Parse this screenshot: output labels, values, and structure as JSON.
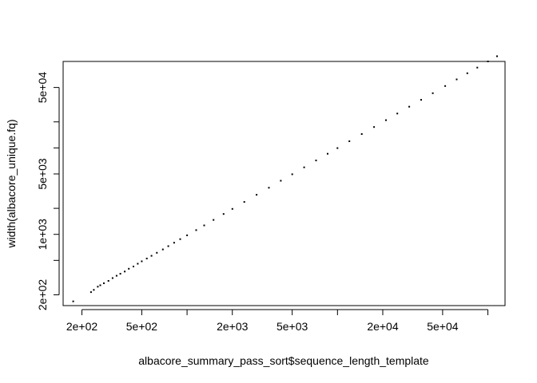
{
  "chart_data": {
    "type": "scatter",
    "title": "",
    "xlabel": "albacore_summary_pass_sort$sequence_length_template",
    "ylabel": "width(albacore_unique.fq)",
    "xscale": "log",
    "yscale": "log",
    "xlim": [
      150,
      130000
    ],
    "ylim": [
      150,
      100000
    ],
    "grid": false,
    "legend": "none",
    "point_color": "#000000",
    "x_ticks": [
      {
        "value": 200,
        "label": "2e+02"
      },
      {
        "value": 500,
        "label": "5e+02"
      },
      {
        "value": 1000,
        "label": ""
      },
      {
        "value": 2000,
        "label": "2e+03"
      },
      {
        "value": 5000,
        "label": "5e+03"
      },
      {
        "value": 10000,
        "label": ""
      },
      {
        "value": 20000,
        "label": "2e+04"
      },
      {
        "value": 50000,
        "label": "5e+04"
      },
      {
        "value": 100000,
        "label": ""
      }
    ],
    "y_ticks": [
      {
        "value": 200,
        "label": "2e+02"
      },
      {
        "value": 500,
        "label": ""
      },
      {
        "value": 1000,
        "label": "1e+03"
      },
      {
        "value": 2000,
        "label": ""
      },
      {
        "value": 5000,
        "label": "5e+03"
      },
      {
        "value": 10000,
        "label": ""
      },
      {
        "value": 20000,
        "label": ""
      },
      {
        "value": 50000,
        "label": "5e+04"
      }
    ],
    "points": [
      [
        175,
        168
      ],
      [
        230,
        215
      ],
      [
        240,
        228
      ],
      [
        255,
        248
      ],
      [
        265,
        258
      ],
      [
        280,
        272
      ],
      [
        300,
        290
      ],
      [
        320,
        312
      ],
      [
        340,
        332
      ],
      [
        360,
        350
      ],
      [
        385,
        372
      ],
      [
        410,
        400
      ],
      [
        440,
        425
      ],
      [
        470,
        458
      ],
      [
        500,
        488
      ],
      [
        540,
        525
      ],
      [
        580,
        565
      ],
      [
        630,
        612
      ],
      [
        690,
        670
      ],
      [
        750,
        730
      ],
      [
        820,
        800
      ],
      [
        900,
        880
      ],
      [
        1000,
        975
      ],
      [
        1150,
        1120
      ],
      [
        1300,
        1270
      ],
      [
        1500,
        1470
      ],
      [
        1750,
        1720
      ],
      [
        2000,
        1970
      ],
      [
        2400,
        2370
      ],
      [
        2900,
        2870
      ],
      [
        3500,
        3460
      ],
      [
        4200,
        4170
      ],
      [
        5000,
        4960
      ],
      [
        6000,
        5960
      ],
      [
        7200,
        7150
      ],
      [
        8600,
        8550
      ],
      [
        10000,
        9950
      ],
      [
        12000,
        11950
      ],
      [
        14500,
        14450
      ],
      [
        17500,
        17450
      ],
      [
        21000,
        20950
      ],
      [
        25000,
        24950
      ],
      [
        30000,
        29950
      ],
      [
        36000,
        35950
      ],
      [
        43000,
        42950
      ],
      [
        52000,
        51950
      ],
      [
        62000,
        61950
      ],
      [
        73000,
        72950
      ],
      [
        85000,
        84950
      ],
      [
        100000,
        99900
      ],
      [
        115000,
        114900
      ]
    ]
  }
}
